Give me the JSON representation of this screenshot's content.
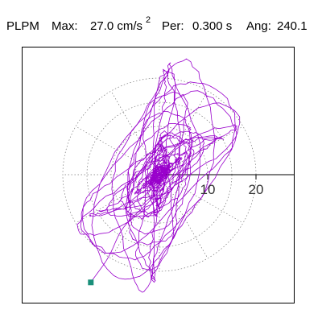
{
  "header": {
    "name": "PLPM",
    "max_label": "Max:",
    "max_value": "27.0 cm/s",
    "max_exp": "2",
    "per_label": "Per:",
    "per_value": "0.300 s",
    "ang_label": "Ang:",
    "ang_value": "240.1"
  },
  "colors": {
    "trace": "#9900cc",
    "grid": "#777777",
    "axis": "#000000",
    "end_marker": "#1a8f7a",
    "frame": "#000000"
  },
  "chart_data": {
    "type": "polar-hodogram",
    "units": "cm/s2",
    "rings": [
      10,
      20
    ],
    "tick_labels": [
      "10",
      "20"
    ],
    "max_radius": 27.0,
    "period_s": 0.3,
    "angle_deg": 240.1,
    "trace_peak": 27.0,
    "end_point": [
      -14.2,
      -22.3
    ]
  }
}
